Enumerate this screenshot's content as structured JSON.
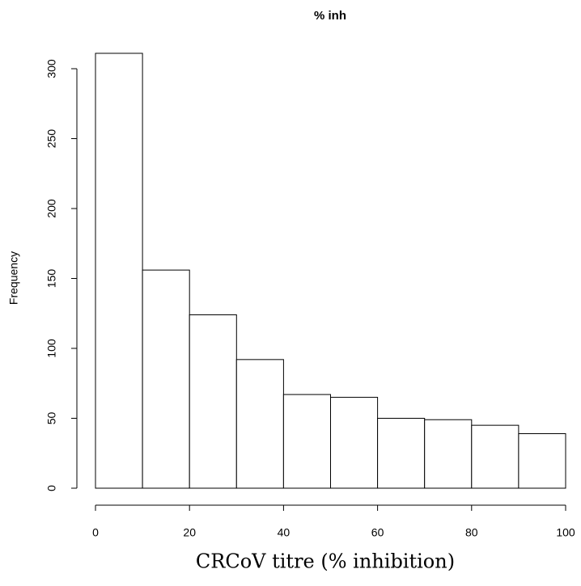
{
  "chart_data": {
    "type": "histogram",
    "title": "% inh",
    "x_label": "CRCoV titre (% inhibition)",
    "y_label": "Frequency",
    "bins": [
      0,
      10,
      20,
      30,
      40,
      50,
      60,
      70,
      80,
      90,
      100
    ],
    "values": [
      311,
      156,
      124,
      92,
      67,
      65,
      50,
      49,
      45,
      39
    ],
    "color": "#ffffff",
    "edgecolor": "#000000",
    "xlim": [
      0,
      100
    ],
    "xticks": [
      0,
      20,
      40,
      60,
      80,
      100
    ],
    "ylim": [
      0,
      311
    ],
    "yticks": [
      0,
      50,
      100,
      150,
      200,
      250,
      300
    ],
    "grid": false
  }
}
